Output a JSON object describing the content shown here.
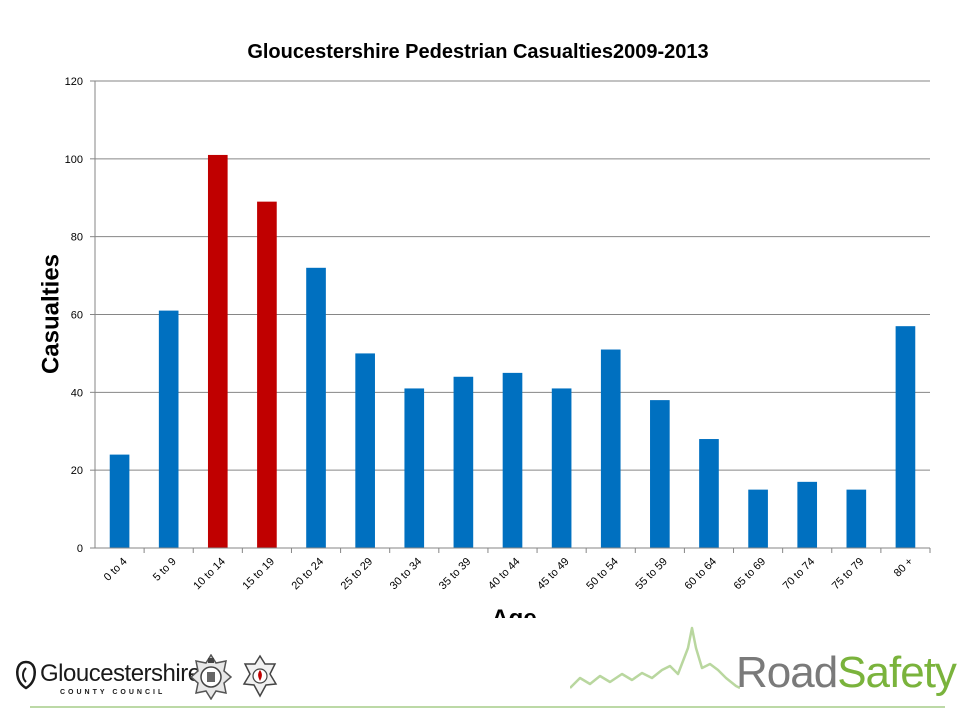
{
  "chart_data": {
    "type": "bar",
    "title": "Gloucestershire Pedestrian Casualties2009-2013",
    "xlabel": "Age",
    "ylabel": "Casualties",
    "ylim": [
      0,
      120
    ],
    "yticks": [
      "0",
      "20",
      "40",
      "60",
      "80",
      "100",
      "120"
    ],
    "ytick_values": [
      0,
      20,
      40,
      60,
      80,
      100,
      120
    ],
    "grid": true,
    "legend": "none",
    "categories": [
      "0 to 4",
      "5 to 9",
      "10 to 14",
      "15 to 19",
      "20 to 24",
      "25 to 29",
      "30 to 34",
      "35 to 39",
      "40 to 44",
      "45 to 49",
      "50 to 54",
      "55 to 59",
      "60 to 64",
      "65 to 69",
      "70 to 74",
      "75 to 79",
      "80 +"
    ],
    "values": [
      24,
      61,
      101,
      89,
      72,
      50,
      41,
      44,
      45,
      41,
      51,
      38,
      28,
      15,
      17,
      15,
      57
    ],
    "highlighted_categories": [
      "10 to 14",
      "15 to 19"
    ],
    "colors": {
      "bar": "#0070c0",
      "highlight": "#c00000",
      "grid": "#868686"
    }
  },
  "footer": {
    "council_name": "Gloucestershire",
    "council_sub": "COUNTY COUNCIL",
    "brand_road": "Road",
    "brand_safety": "Safety",
    "police_badge": "police-crest-icon",
    "fire_badge": "fire-rescue-crest-icon"
  }
}
